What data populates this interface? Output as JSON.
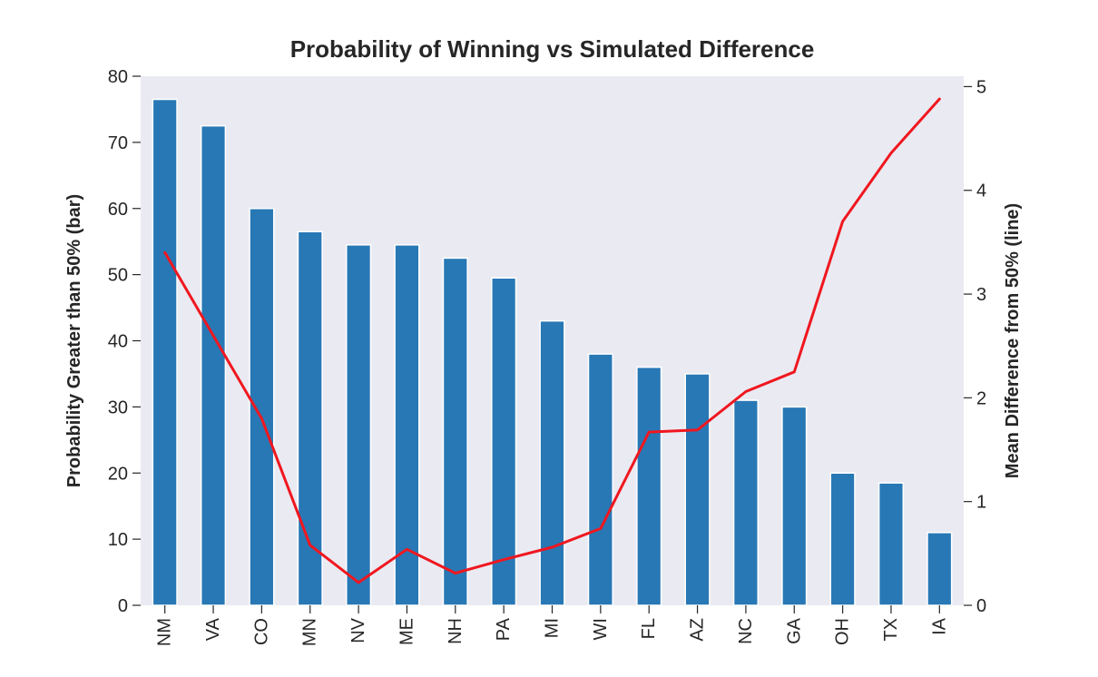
{
  "chart_data": {
    "type": "bar",
    "title": "Probability of Winning vs Simulated Difference",
    "xlabel": "",
    "ylabel": "Probability Greater than 50% (bar)",
    "ylabel_right": "Mean Difference from 50% (line)",
    "categories": [
      "NM",
      "VA",
      "CO",
      "MN",
      "NV",
      "ME",
      "NH",
      "PA",
      "MI",
      "WI",
      "FL",
      "AZ",
      "NC",
      "GA",
      "OH",
      "TX",
      "IA"
    ],
    "series": [
      {
        "type": "bar",
        "axis": "left",
        "color": "#2878b5",
        "values": [
          76.5,
          72.5,
          60,
          56.5,
          54.5,
          54.5,
          52.5,
          49.5,
          43,
          38,
          36,
          35,
          31,
          30,
          20,
          18.5,
          11
        ]
      },
      {
        "type": "line",
        "axis": "right",
        "color": "#f0171f",
        "values": [
          3.4,
          2.6,
          1.8,
          0.58,
          0.22,
          0.54,
          0.31,
          0.44,
          0.56,
          0.74,
          1.67,
          1.69,
          2.06,
          2.25,
          3.7,
          4.36,
          4.88
        ]
      }
    ],
    "ylim": [
      0,
      80
    ],
    "yticks": [
      0,
      10,
      20,
      30,
      40,
      50,
      60,
      70,
      80
    ],
    "ylim_right": [
      0,
      5.1
    ],
    "yticks_right": [
      0,
      1,
      2,
      3,
      4,
      5
    ],
    "background": "#eaeaf2",
    "grid": false,
    "legend": "none"
  }
}
